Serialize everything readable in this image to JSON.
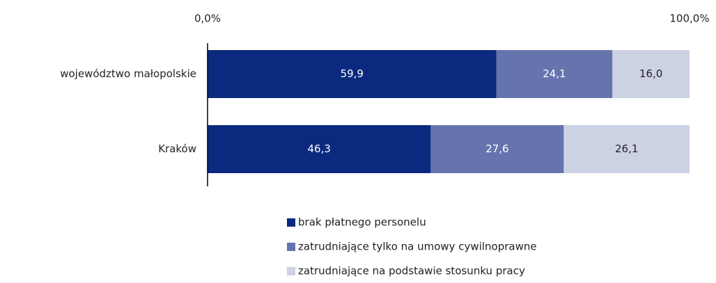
{
  "chart_data": {
    "type": "stacked-bar-horizontal",
    "categories": [
      "województwo małopolskie",
      "Kraków"
    ],
    "series": [
      {
        "name": "brak płatnego personelu",
        "color": "#0b2a7f",
        "values": [
          59.9,
          46.3
        ],
        "value_labels": [
          "59,9",
          "46,3"
        ]
      },
      {
        "name": "zatrudniające tylko na umowy cywilnoprawne",
        "color": "#6674ae",
        "values": [
          24.1,
          27.6
        ],
        "value_labels": [
          "24,1",
          "27,6"
        ]
      },
      {
        "name": "zatrudniające na podstawie stosunku pracy",
        "color": "#ccd1e4",
        "values": [
          16.0,
          26.1
        ],
        "value_labels": [
          "16,0",
          "26,1"
        ]
      }
    ],
    "xlim": [
      0,
      100
    ],
    "xticks": [
      {
        "value": 0,
        "label": "0,0%"
      },
      {
        "value": 100,
        "label": "100,0%"
      }
    ],
    "grid": false,
    "legend": "bottom"
  }
}
